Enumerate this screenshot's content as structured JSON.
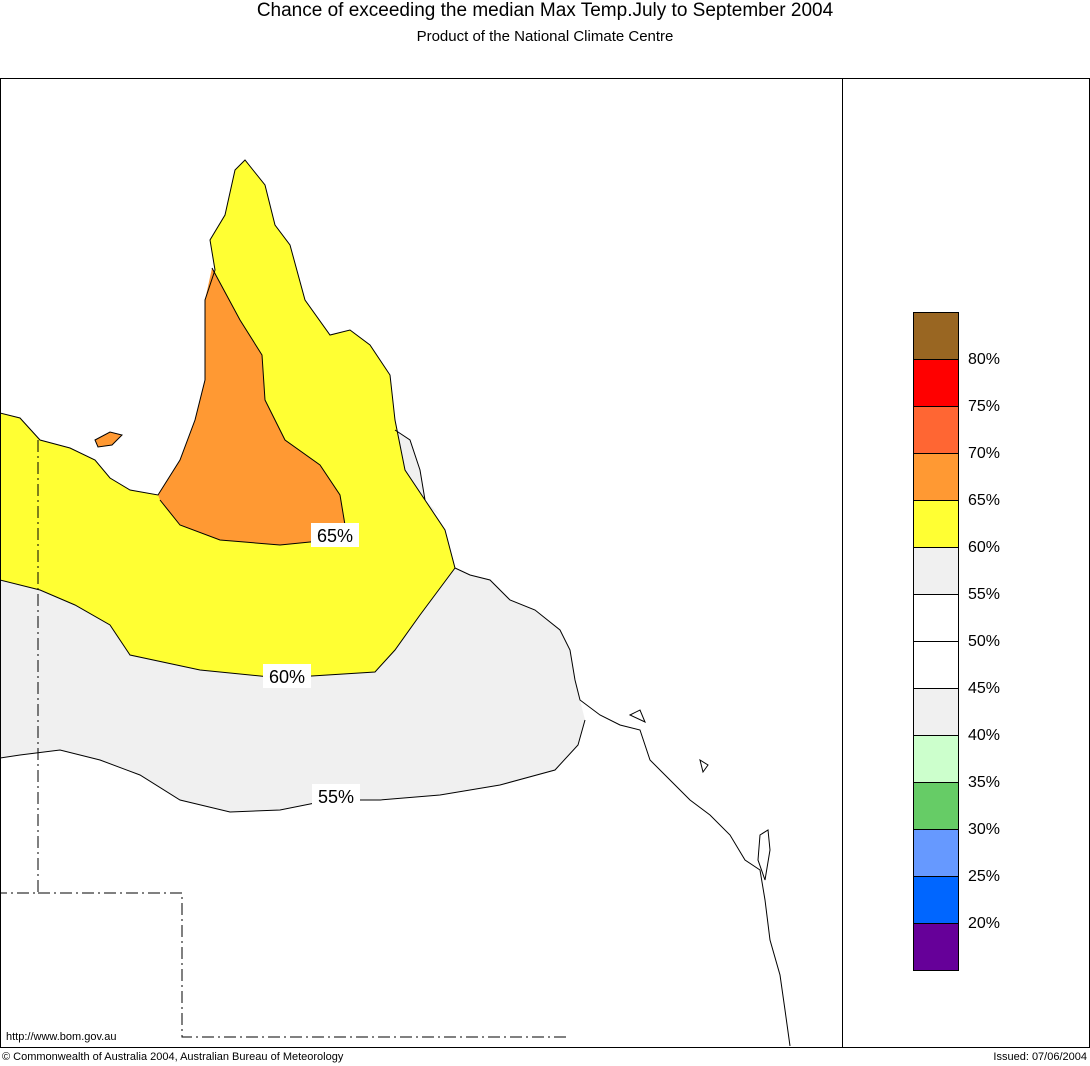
{
  "header": {
    "title": "Chance of exceeding the median Max Temp.July to September 2004",
    "subtitle": "Product of the National Climate Centre"
  },
  "map": {
    "contours": [
      {
        "label": "65%",
        "color": "#ff9933"
      },
      {
        "label": "60%",
        "color": "#ffff33"
      },
      {
        "label": "55%",
        "color": "#f0f0f0"
      }
    ]
  },
  "legend": {
    "swatches": [
      "#996622",
      "#ff0000",
      "#ff6633",
      "#ff9933",
      "#ffff33",
      "#f0f0f0",
      "#ffffff",
      "#ffffff",
      "#f0f0f0",
      "#ccffcc",
      "#66cc66",
      "#6699ff",
      "#0066ff",
      "#660099"
    ],
    "labels": [
      "80%",
      "75%",
      "70%",
      "65%",
      "60%",
      "55%",
      "50%",
      "45%",
      "40%",
      "35%",
      "30%",
      "25%",
      "20%"
    ]
  },
  "footer": {
    "url": "http://www.bom.gov.au",
    "copyright": "© Commonwealth of Australia 2004, Australian Bureau of Meteorology",
    "issued": "Issued: 07/06/2004"
  }
}
